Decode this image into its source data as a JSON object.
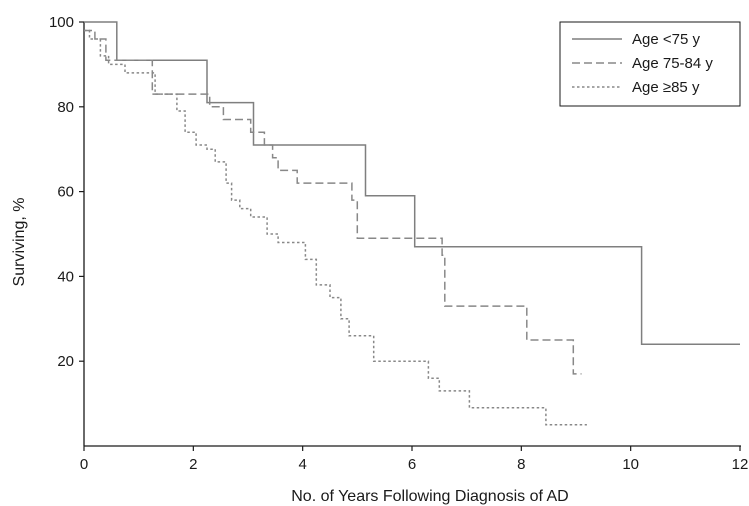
{
  "chart_data": {
    "type": "line",
    "step": true,
    "xlabel": "No. of Years Following Diagnosis of AD",
    "ylabel": "Surviving, %",
    "xlim": [
      0,
      12
    ],
    "ylim": [
      0,
      100
    ],
    "xticks": [
      0,
      2,
      4,
      6,
      8,
      10,
      12
    ],
    "yticks": [
      20,
      40,
      60,
      80,
      100
    ],
    "grid": false,
    "legend_position": "top-right",
    "series": [
      {
        "name": "Age <75 y",
        "style": "solid",
        "color": "#7f7f7f",
        "x": [
          0,
          0.6,
          0.6,
          2.25,
          2.25,
          3.1,
          3.1,
          5.15,
          5.15,
          6.05,
          6.05,
          10.2,
          10.2,
          12
        ],
        "y": [
          100,
          100,
          91,
          91,
          81,
          81,
          71,
          71,
          59,
          59,
          47,
          47,
          24,
          24
        ]
      },
      {
        "name": "Age 75-84 y",
        "style": "dashed",
        "color": "#888888",
        "x": [
          0,
          0.2,
          0.2,
          0.4,
          0.4,
          1.25,
          1.25,
          2.3,
          2.3,
          2.55,
          2.55,
          3.05,
          3.05,
          3.3,
          3.3,
          3.45,
          3.45,
          3.55,
          3.55,
          3.9,
          3.9,
          4.9,
          4.9,
          5.0,
          5.0,
          6.55,
          6.55,
          6.6,
          6.6,
          8.1,
          8.1,
          8.95,
          8.95,
          9.1
        ],
        "y": [
          98,
          98,
          96,
          96,
          91,
          91,
          83,
          83,
          80,
          80,
          77,
          77,
          74,
          74,
          71,
          71,
          68,
          68,
          65,
          65,
          62,
          62,
          58,
          58,
          49,
          49,
          45,
          45,
          33,
          33,
          25,
          25,
          17,
          17
        ]
      },
      {
        "name": "Age ≥85 y",
        "style": "dotted",
        "color": "#888888",
        "x": [
          0,
          0.1,
          0.1,
          0.3,
          0.3,
          0.45,
          0.45,
          0.75,
          0.75,
          1.3,
          1.3,
          1.7,
          1.7,
          1.85,
          1.85,
          2.05,
          2.05,
          2.25,
          2.25,
          2.4,
          2.4,
          2.6,
          2.6,
          2.7,
          2.7,
          2.85,
          2.85,
          3.05,
          3.05,
          3.35,
          3.35,
          3.55,
          3.55,
          4.05,
          4.05,
          4.25,
          4.25,
          4.5,
          4.5,
          4.7,
          4.7,
          4.85,
          4.85,
          5.3,
          5.3,
          5.5,
          5.5,
          6.3,
          6.3,
          6.5,
          6.5,
          7.05,
          7.05,
          8.45,
          8.45,
          9.2
        ],
        "y": [
          98,
          98,
          96,
          96,
          92,
          92,
          90,
          90,
          88,
          88,
          83,
          83,
          79,
          79,
          74,
          74,
          71,
          71,
          70,
          70,
          67,
          67,
          62,
          62,
          58,
          58,
          56,
          56,
          54,
          54,
          50,
          50,
          48,
          48,
          44,
          44,
          38,
          38,
          35,
          35,
          30,
          30,
          26,
          26,
          20,
          20,
          20,
          20,
          16,
          16,
          13,
          13,
          9,
          9,
          5,
          5
        ]
      }
    ]
  }
}
